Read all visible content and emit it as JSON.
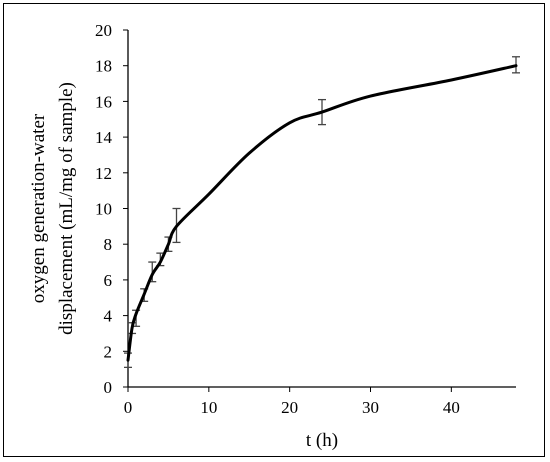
{
  "chart_data": {
    "type": "line",
    "title": "",
    "xlabel": "t (h)",
    "ylabel_lines": [
      "oxygen generation-water",
      "displacement (mL/mg of sample)"
    ],
    "xlim": [
      0,
      48
    ],
    "ylim": [
      0,
      20
    ],
    "xticks": [
      0,
      10,
      20,
      30,
      40
    ],
    "yticks": [
      0,
      2,
      4,
      6,
      8,
      10,
      12,
      14,
      16,
      18,
      20
    ],
    "grid": false,
    "legend": "none",
    "line_color": "#000000",
    "series": [
      {
        "x": [
          0,
          0.5,
          1,
          2,
          3,
          4,
          5,
          6,
          10,
          15,
          20,
          24,
          30,
          40,
          48
        ],
        "y": [
          1.5,
          3.3,
          4.1,
          5.2,
          6.3,
          7.0,
          8.0,
          9.0,
          10.8,
          13.1,
          14.8,
          15.4,
          16.3,
          17.2,
          18.0
        ]
      }
    ],
    "error_bars": [
      {
        "x": 0,
        "y": 1.5,
        "low": 1.1,
        "high": 1.9
      },
      {
        "x": 0.5,
        "y": 3.3,
        "low": 3.0,
        "high": 3.6
      },
      {
        "x": 1,
        "y": 3.8,
        "low": 3.4,
        "high": 4.3
      },
      {
        "x": 2,
        "y": 5.1,
        "low": 4.8,
        "high": 5.5
      },
      {
        "x": 3,
        "y": 6.4,
        "low": 5.9,
        "high": 7.0
      },
      {
        "x": 4,
        "y": 6.9,
        "low": 6.8,
        "high": 7.5
      },
      {
        "x": 5,
        "y": 8.0,
        "low": 7.6,
        "high": 8.4
      },
      {
        "x": 6,
        "y": 9.1,
        "low": 8.1,
        "high": 10.0
      },
      {
        "x": 24,
        "y": 15.4,
        "low": 14.7,
        "high": 16.1
      },
      {
        "x": 48,
        "y": 18.0,
        "low": 17.6,
        "high": 18.5
      }
    ]
  }
}
